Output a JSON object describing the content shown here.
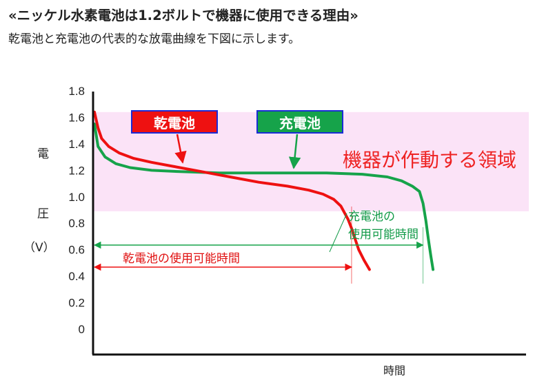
{
  "header": {
    "title": "«ニッケル水素電池は1.2ボルトで機器に使用できる理由»",
    "subtitle": "乾電池と充電池の代表的な放電曲線を下図に示します。"
  },
  "colors": {
    "dry": "#ee1111",
    "rechargeable": "#16a34a",
    "zone_fill": "#fbe3f7",
    "axis": "#111111",
    "legend_border": "#1a2bd6"
  },
  "chart_data": {
    "type": "line",
    "xlabel": "時間",
    "ylabel": [
      "電",
      "圧",
      "（V）"
    ],
    "yticks": [
      "1.8",
      "1.6",
      "1.4",
      "1.2",
      "1.0",
      "0.8",
      "0.6",
      "0.4",
      "0.2",
      "0"
    ],
    "ylim": [
      0,
      1.8
    ],
    "xlim": [
      0,
      100
    ],
    "grid": false,
    "operating_zone": {
      "label": "機器が作動する領域",
      "y_range": [
        0.89,
        1.64
      ]
    },
    "series": [
      {
        "name": "乾電池",
        "color": "#ee1111",
        "x": [
          0,
          1,
          2,
          4,
          7,
          11,
          16,
          22,
          30,
          38,
          46,
          54,
          60,
          64,
          67,
          69,
          70,
          71,
          72,
          73,
          74,
          75.5,
          77
        ],
        "y": [
          1.64,
          1.52,
          1.44,
          1.38,
          1.33,
          1.29,
          1.26,
          1.23,
          1.19,
          1.15,
          1.11,
          1.08,
          1.05,
          1.02,
          0.98,
          0.93,
          0.88,
          0.83,
          0.76,
          0.68,
          0.6,
          0.52,
          0.45
        ]
      },
      {
        "name": "充電池",
        "color": "#16a34a",
        "x": [
          0,
          1,
          3,
          6,
          10,
          16,
          24,
          35,
          50,
          65,
          75,
          82,
          86,
          89,
          91,
          92,
          92.8,
          93.5,
          94.2,
          94.8
        ],
        "y": [
          1.55,
          1.38,
          1.3,
          1.25,
          1.22,
          1.2,
          1.19,
          1.18,
          1.18,
          1.18,
          1.17,
          1.15,
          1.12,
          1.08,
          1.04,
          0.95,
          0.82,
          0.68,
          0.55,
          0.45
        ]
      }
    ],
    "legend": [
      {
        "label": "乾電池",
        "color": "#ee1111"
      },
      {
        "label": "充電池",
        "color": "#16a34a"
      }
    ],
    "annotations": {
      "dry_usage": "乾電池の使用可能時間",
      "rech_usage_line1": "充電池の",
      "rech_usage_line2": "使用可能時間"
    },
    "usage_end": {
      "dry_x": 72,
      "rechargeable_x": 92
    }
  }
}
